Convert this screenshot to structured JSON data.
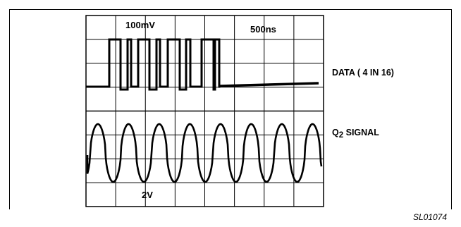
{
  "figure": {
    "scope": {
      "vertical_scale_label": "100mV",
      "time_scale_label": "500ns",
      "lower_scale_label": "2V",
      "grid_divisions": {
        "horizontal": 8,
        "vertical": 8
      }
    },
    "traces": {
      "data_label": "DATA ( 4 IN 16)",
      "signal_label_prefix": "Q",
      "signal_label_subscript": "2",
      "signal_label_suffix": " SIGNAL"
    },
    "figure_id": "SL01074"
  }
}
